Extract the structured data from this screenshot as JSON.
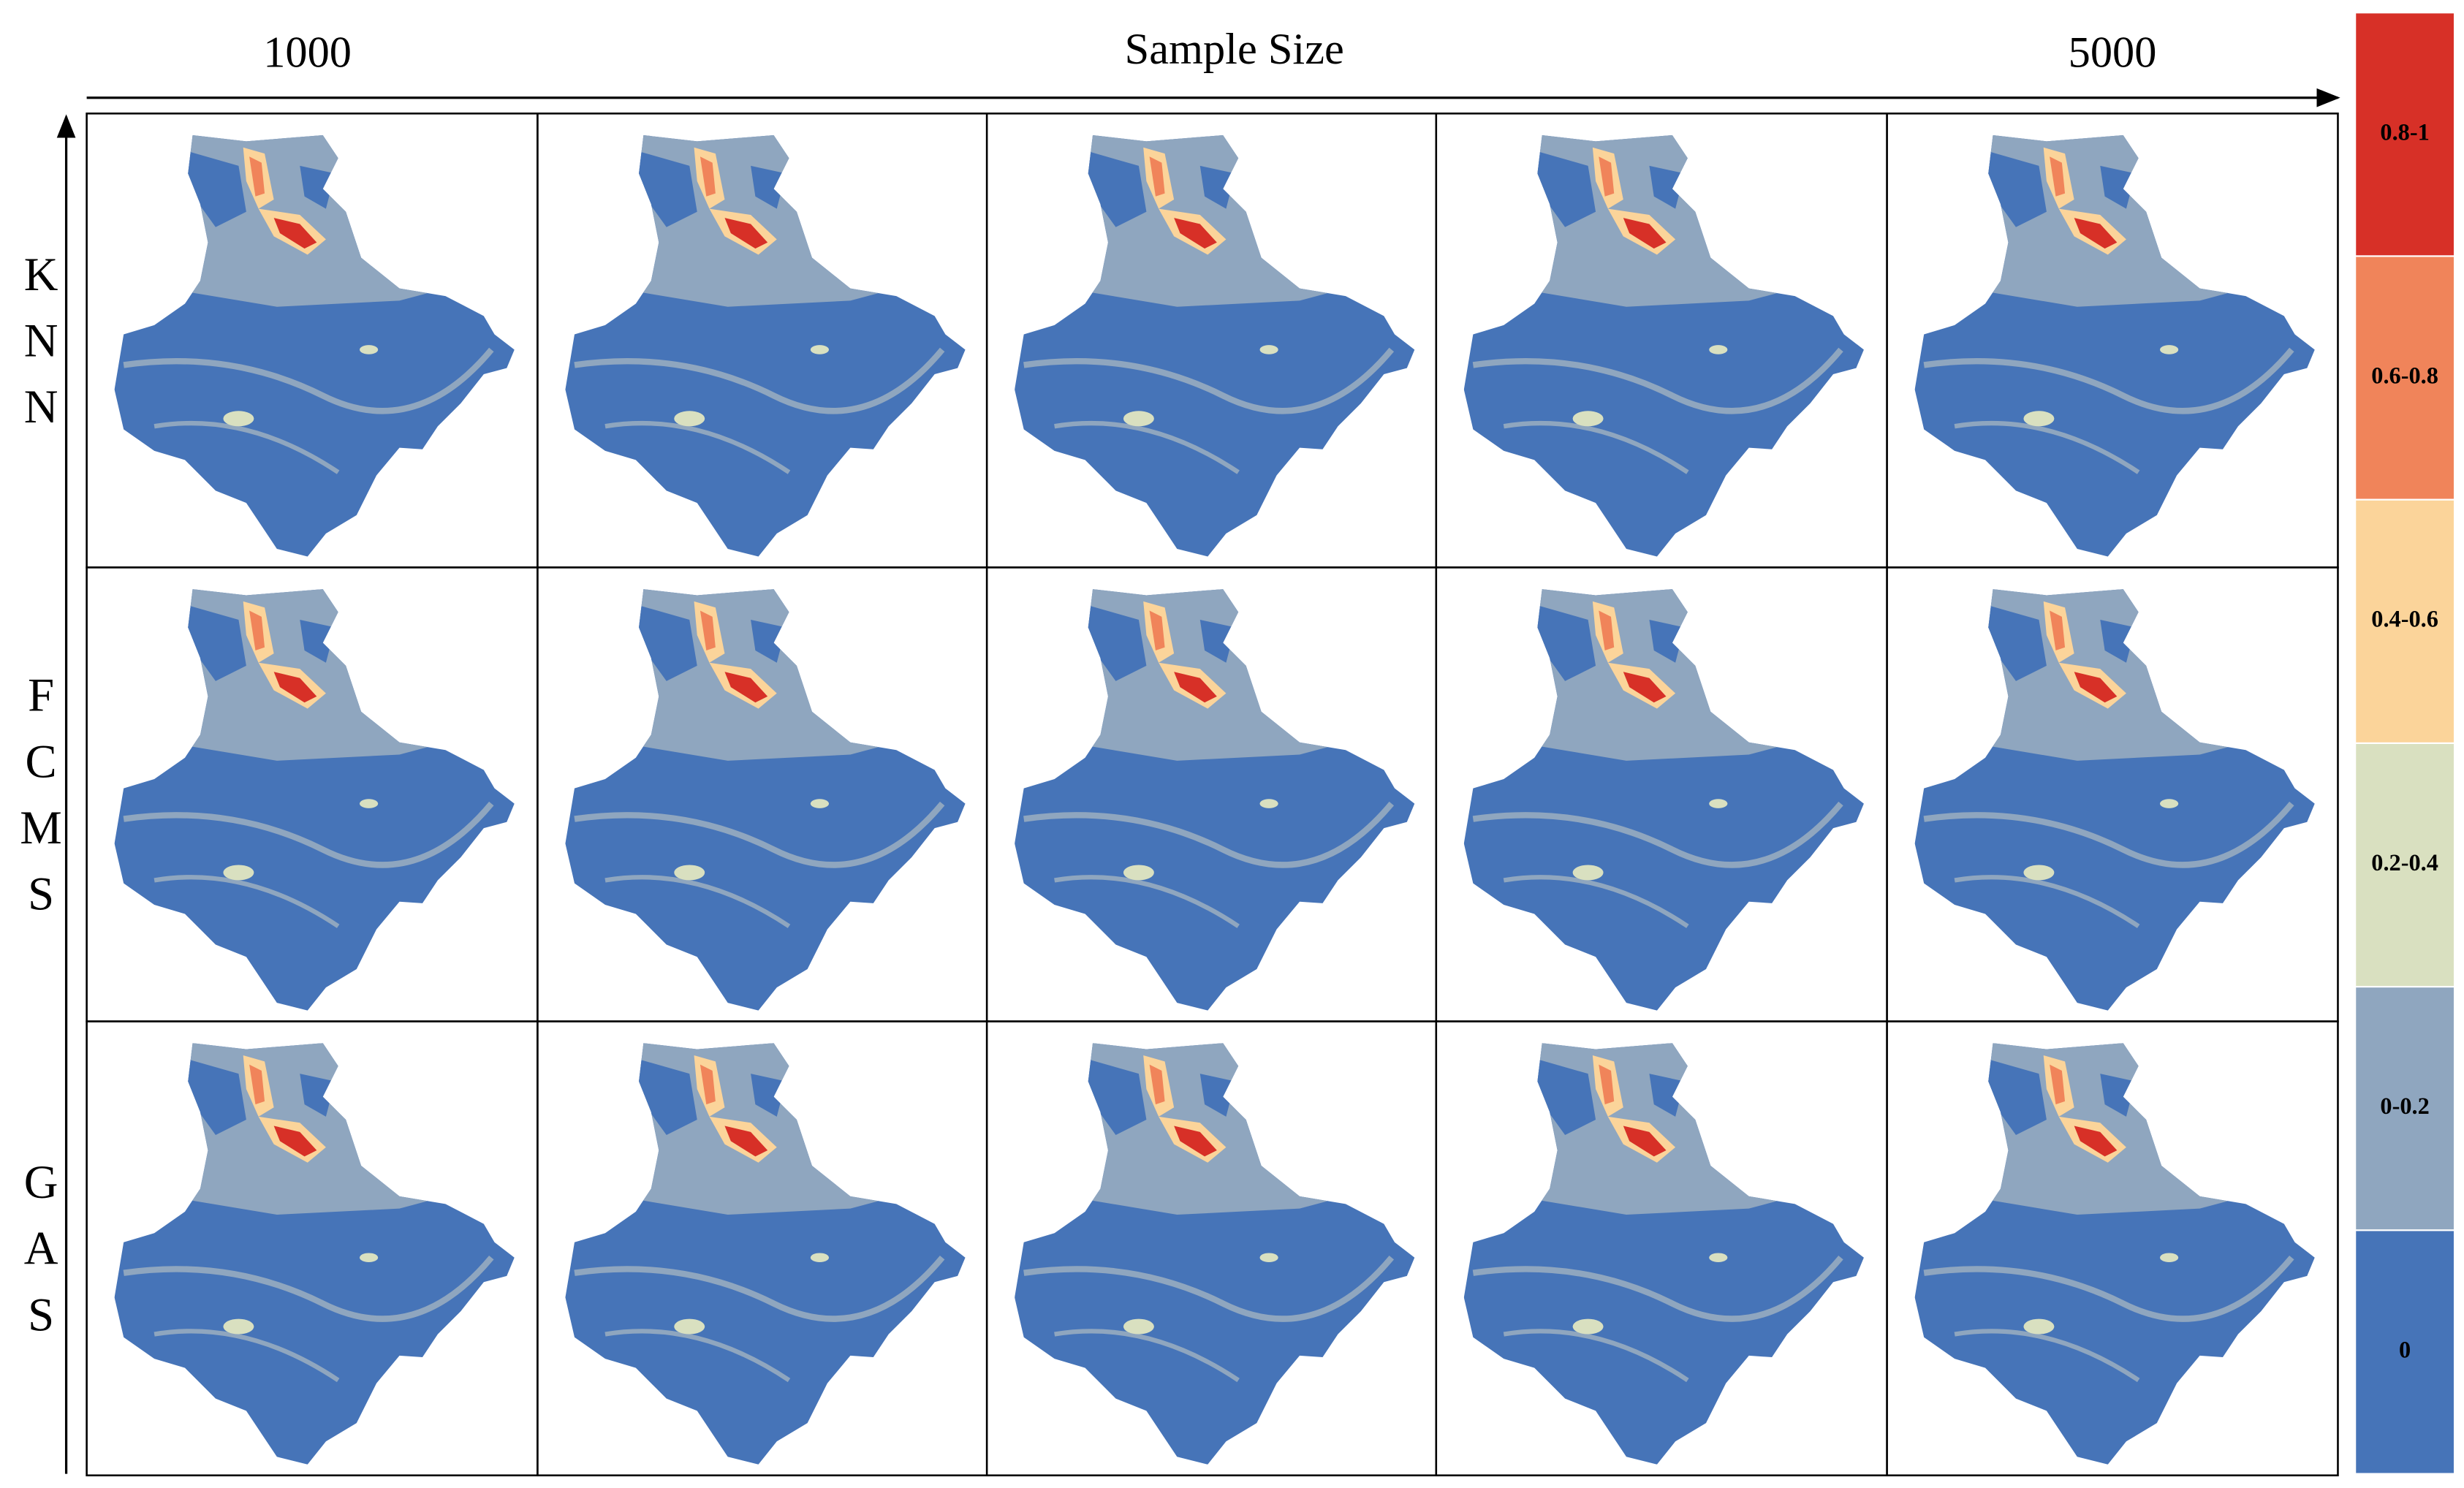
{
  "header": {
    "start": "1000",
    "axis_title": "Sample Size",
    "end": "5000"
  },
  "rows": [
    "KNN",
    "FCMS",
    "GAS"
  ],
  "legend": [
    {
      "label": "0.8-1",
      "color": "#d73027"
    },
    {
      "label": "0.6-0.8",
      "color": "#f0845a"
    },
    {
      "label": "0.4-0.6",
      "color": "#fbd49a"
    },
    {
      "label": "0.2-0.4",
      "color": "#d9e0c0"
    },
    {
      "label": "0-0.2",
      "color": "#8fa6bf"
    },
    {
      "label": "0",
      "color": "#4674b8"
    }
  ]
}
